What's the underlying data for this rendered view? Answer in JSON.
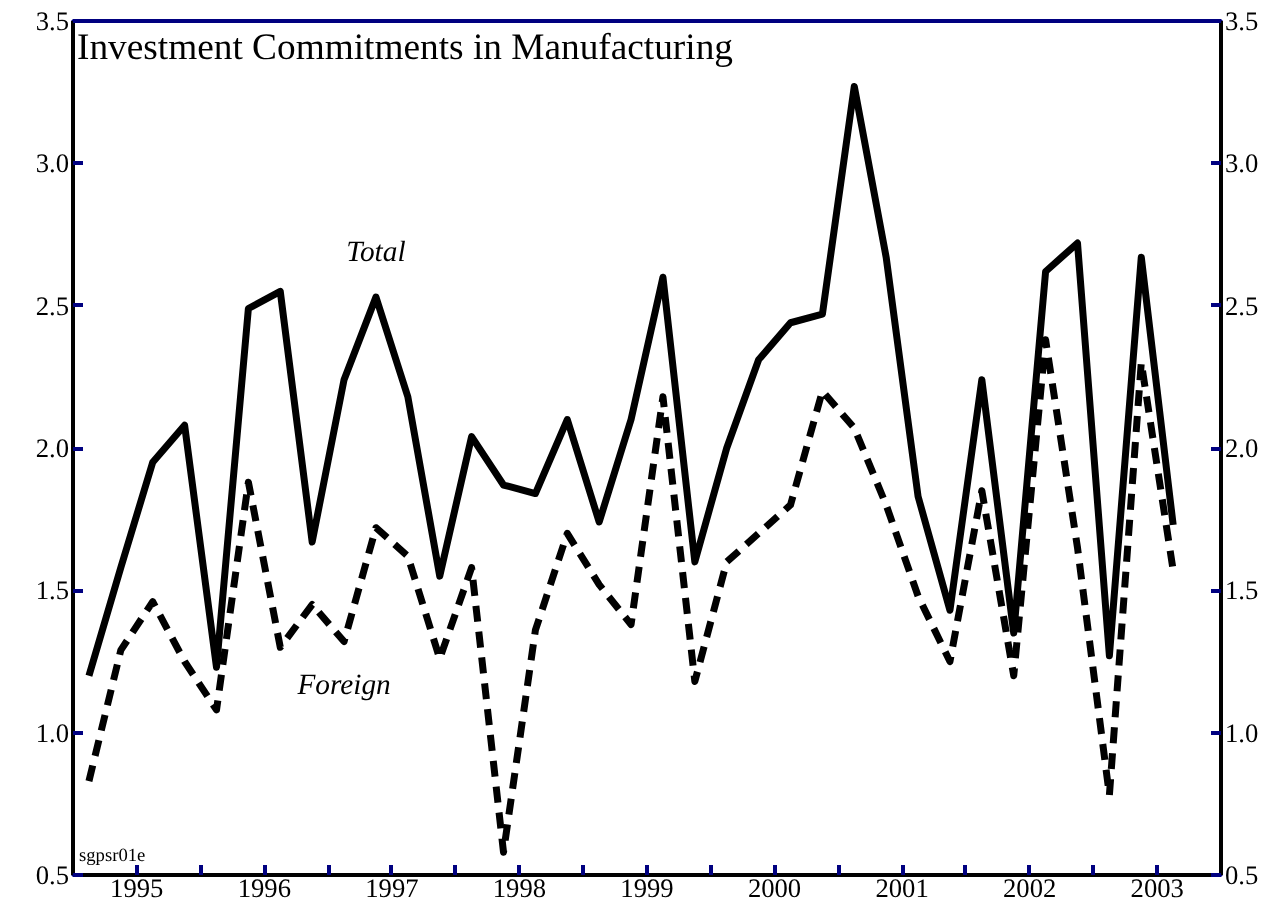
{
  "chart_data": {
    "type": "line",
    "title": "Investment Commitments in Manufacturing",
    "x": [
      1995.125,
      1995.375,
      1995.625,
      1995.875,
      1996.125,
      1996.375,
      1996.625,
      1996.875,
      1997.125,
      1997.375,
      1997.625,
      1997.875,
      1998.125,
      1998.375,
      1998.625,
      1998.875,
      1999.125,
      1999.375,
      1999.625,
      1999.875,
      2000.125,
      2000.375,
      2000.625,
      2000.875,
      2001.125,
      2001.375,
      2001.625,
      2001.875,
      2002.125,
      2002.375,
      2002.625,
      2002.875,
      2003.125,
      2003.375,
      2003.625
    ],
    "series": [
      {
        "name": "Total",
        "color": "#000000",
        "line_style": "solid",
        "values": [
          1.2,
          1.58,
          1.95,
          2.08,
          1.23,
          2.49,
          2.55,
          1.67,
          2.24,
          2.53,
          2.18,
          1.55,
          2.04,
          1.87,
          1.84,
          2.1,
          1.74,
          2.1,
          2.6,
          1.6,
          2.0,
          2.31,
          2.44,
          2.47,
          3.27,
          2.67,
          1.83,
          1.43,
          2.24,
          1.35,
          2.62,
          2.72,
          1.27,
          2.67,
          1.73
        ]
      },
      {
        "name": "Foreign",
        "color": "#000000",
        "line_style": "dashed",
        "values": [
          0.83,
          1.29,
          1.46,
          1.25,
          1.08,
          1.88,
          1.3,
          1.45,
          1.32,
          1.72,
          1.62,
          1.26,
          1.58,
          0.58,
          1.36,
          1.7,
          1.52,
          1.38,
          2.18,
          1.18,
          1.6,
          1.7,
          1.8,
          2.2,
          2.07,
          1.8,
          1.48,
          1.25,
          1.85,
          1.2,
          2.38,
          1.65,
          0.78,
          2.3,
          1.57
        ]
      }
    ],
    "xlim": [
      1995,
      2004
    ],
    "xticks": [
      {
        "value": 1995,
        "label": null
      },
      {
        "value": 1995.5,
        "label": "1995"
      },
      {
        "value": 1996,
        "label": null
      },
      {
        "value": 1996.5,
        "label": "1996"
      },
      {
        "value": 1997,
        "label": null
      },
      {
        "value": 1997.5,
        "label": "1997"
      },
      {
        "value": 1998,
        "label": null
      },
      {
        "value": 1998.5,
        "label": "1998"
      },
      {
        "value": 1999,
        "label": null
      },
      {
        "value": 1999.5,
        "label": "1999"
      },
      {
        "value": 2000,
        "label": null
      },
      {
        "value": 2000.5,
        "label": "2000"
      },
      {
        "value": 2001,
        "label": null
      },
      {
        "value": 2001.5,
        "label": "2001"
      },
      {
        "value": 2002,
        "label": null
      },
      {
        "value": 2002.5,
        "label": "2002"
      },
      {
        "value": 2003,
        "label": null
      },
      {
        "value": 2003.5,
        "label": "2003"
      },
      {
        "value": 2004,
        "label": null
      }
    ],
    "ylim": [
      0.5,
      3.5
    ],
    "yticks": [
      {
        "value": 0.5,
        "label": "0.5"
      },
      {
        "value": 1,
        "label": "1.0"
      },
      {
        "value": 1.5,
        "label": "1.5"
      },
      {
        "value": 2,
        "label": "2.0"
      },
      {
        "value": 2.5,
        "label": "2.5"
      },
      {
        "value": 3,
        "label": "3.0"
      },
      {
        "value": 3.5,
        "label": "3.5"
      }
    ],
    "y2lim": [
      0.5,
      3.5
    ],
    "y2ticks": [
      {
        "value": 0.5,
        "label": "0.5"
      },
      {
        "value": 1,
        "label": "1.0"
      },
      {
        "value": 1.5,
        "label": "1.5"
      },
      {
        "value": 2,
        "label": "2.0"
      },
      {
        "value": 2.5,
        "label": "2.5"
      },
      {
        "value": 3,
        "label": "3.0"
      },
      {
        "value": 3.5,
        "label": "3.5"
      }
    ],
    "annotations": [
      "sgpsr01e"
    ],
    "grid": false,
    "marker": "none"
  }
}
